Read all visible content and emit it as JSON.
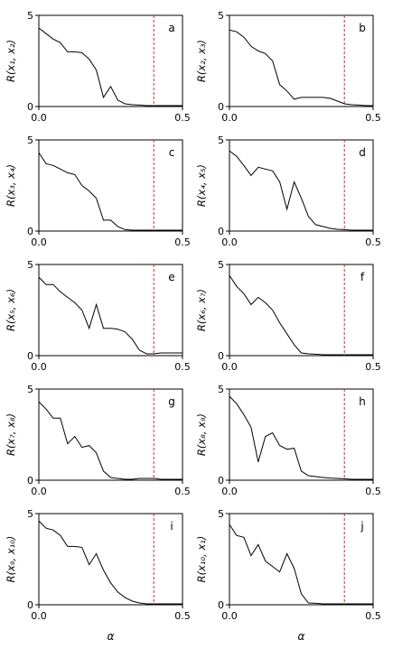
{
  "chart_data": {
    "type": "line",
    "xlabel": "α",
    "xlim": [
      0,
      0.5
    ],
    "ylim": [
      0,
      5
    ],
    "x_ticks": [
      {
        "value": 0.0,
        "label": "0.0"
      },
      {
        "value": 0.5,
        "label": "0.5"
      }
    ],
    "y_ticks": [
      {
        "value": 0,
        "label": "0"
      },
      {
        "value": 5,
        "label": "5"
      }
    ],
    "threshold_line": {
      "x": 0.4,
      "color": "#d62728",
      "style": "dashed"
    },
    "line_color": "#000000",
    "grid": false,
    "x": [
      0.0,
      0.025,
      0.05,
      0.075,
      0.1,
      0.125,
      0.15,
      0.175,
      0.2,
      0.225,
      0.25,
      0.275,
      0.3,
      0.325,
      0.35,
      0.375,
      0.4,
      0.425,
      0.45,
      0.475,
      0.5
    ],
    "panels": [
      {
        "letter": "a",
        "ylabel": "R(x₁, x₂)",
        "values": [
          4.3,
          4.0,
          3.7,
          3.5,
          3.0,
          3.0,
          2.95,
          2.6,
          2.0,
          0.5,
          1.1,
          0.35,
          0.15,
          0.1,
          0.08,
          0.05,
          0.05,
          0.05,
          0.05,
          0.05,
          0.05
        ]
      },
      {
        "letter": "b",
        "ylabel": "R(x₂, x₃)",
        "values": [
          4.2,
          4.1,
          3.8,
          3.3,
          3.05,
          2.9,
          2.5,
          1.2,
          0.85,
          0.4,
          0.5,
          0.5,
          0.5,
          0.5,
          0.45,
          0.3,
          0.15,
          0.1,
          0.08,
          0.05,
          0.05
        ]
      },
      {
        "letter": "c",
        "ylabel": "R(x₃, x₄)",
        "values": [
          4.3,
          3.7,
          3.6,
          3.4,
          3.2,
          3.1,
          2.5,
          2.2,
          1.8,
          0.6,
          0.6,
          0.25,
          0.08,
          0.05,
          0.05,
          0.05,
          0.05,
          0.05,
          0.05,
          0.05,
          0.05
        ]
      },
      {
        "letter": "d",
        "ylabel": "R(x₄, x₅)",
        "values": [
          4.4,
          4.1,
          3.6,
          3.05,
          3.5,
          3.4,
          3.3,
          2.7,
          1.2,
          2.7,
          1.8,
          0.8,
          0.35,
          0.25,
          0.15,
          0.1,
          0.08,
          0.05,
          0.05,
          0.05,
          0.05
        ]
      },
      {
        "letter": "e",
        "ylabel": "R(x₅, x₆)",
        "values": [
          4.3,
          3.9,
          3.9,
          3.5,
          3.2,
          2.9,
          2.5,
          1.5,
          2.8,
          1.5,
          1.5,
          1.45,
          1.3,
          0.9,
          0.3,
          0.1,
          0.1,
          0.15,
          0.15,
          0.15,
          0.15
        ]
      },
      {
        "letter": "f",
        "ylabel": "R(x₆, x₇)",
        "values": [
          4.4,
          3.8,
          3.4,
          2.8,
          3.2,
          2.9,
          2.5,
          1.8,
          1.2,
          0.6,
          0.15,
          0.1,
          0.08,
          0.05,
          0.05,
          0.05,
          0.05,
          0.05,
          0.05,
          0.05,
          0.05
        ]
      },
      {
        "letter": "g",
        "ylabel": "R(x₇, x₈)",
        "values": [
          4.3,
          3.9,
          3.4,
          3.4,
          2.0,
          2.4,
          1.8,
          1.9,
          1.5,
          0.5,
          0.15,
          0.1,
          0.05,
          0.05,
          0.1,
          0.1,
          0.1,
          0.05,
          0.05,
          0.05,
          0.05
        ]
      },
      {
        "letter": "h",
        "ylabel": "R(x₈, x₉)",
        "values": [
          4.6,
          4.2,
          3.6,
          2.9,
          1.0,
          2.4,
          2.6,
          1.9,
          1.7,
          1.75,
          0.5,
          0.25,
          0.2,
          0.15,
          0.12,
          0.1,
          0.08,
          0.05,
          0.05,
          0.05,
          0.05
        ]
      },
      {
        "letter": "i",
        "ylabel": "R(x₉, x₁₀)",
        "values": [
          4.6,
          4.2,
          4.1,
          3.8,
          3.2,
          3.2,
          3.15,
          2.2,
          2.8,
          1.9,
          1.2,
          0.7,
          0.4,
          0.2,
          0.1,
          0.05,
          0.05,
          0.05,
          0.05,
          0.05,
          0.05
        ]
      },
      {
        "letter": "j",
        "ylabel": "R(x₁₀, x₁)",
        "values": [
          4.4,
          3.8,
          3.7,
          2.7,
          3.3,
          2.4,
          2.1,
          1.8,
          2.8,
          2.0,
          0.6,
          0.1,
          0.08,
          0.05,
          0.05,
          0.05,
          0.05,
          0.05,
          0.05,
          0.05,
          0.05
        ]
      }
    ]
  }
}
